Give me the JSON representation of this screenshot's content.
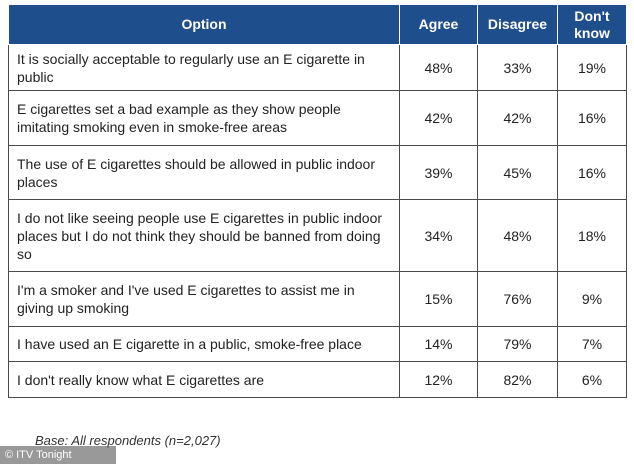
{
  "chart_data": {
    "type": "table",
    "columns": [
      "Option",
      "Agree",
      "Disagree",
      "Don't know"
    ],
    "rows": [
      {
        "option": "It is socially acceptable to regularly use an E cigarette in public",
        "agree": "48%",
        "disagree": "33%",
        "dont_know": "19%"
      },
      {
        "option": "E cigarettes set a bad example as they show people imitating smoking even in smoke-free areas",
        "agree": "42%",
        "disagree": "42%",
        "dont_know": "16%"
      },
      {
        "option": "The use of E cigarettes should be allowed in public indoor places",
        "agree": "39%",
        "disagree": "45%",
        "dont_know": "16%"
      },
      {
        "option": "I do not like seeing people use E cigarettes in public indoor places but I do not think they should be banned from doing so",
        "agree": "34%",
        "disagree": "48%",
        "dont_know": "18%"
      },
      {
        "option": "I'm a smoker and I've used E cigarettes to assist me in giving up smoking",
        "agree": "15%",
        "disagree": "76%",
        "dont_know": "9%"
      },
      {
        "option": "I have used an E cigarette in a public, smoke-free place",
        "agree": "14%",
        "disagree": "79%",
        "dont_know": "7%"
      },
      {
        "option": "I don't really know what E cigarettes are",
        "agree": "12%",
        "disagree": "82%",
        "dont_know": "6%"
      }
    ],
    "header_color": "#1f4e8c"
  },
  "footnote": "Base: All respondents (n=2,027)",
  "credit": {
    "icon": "copyright-icon",
    "symbol": "©",
    "text": "ITV Tonight"
  }
}
